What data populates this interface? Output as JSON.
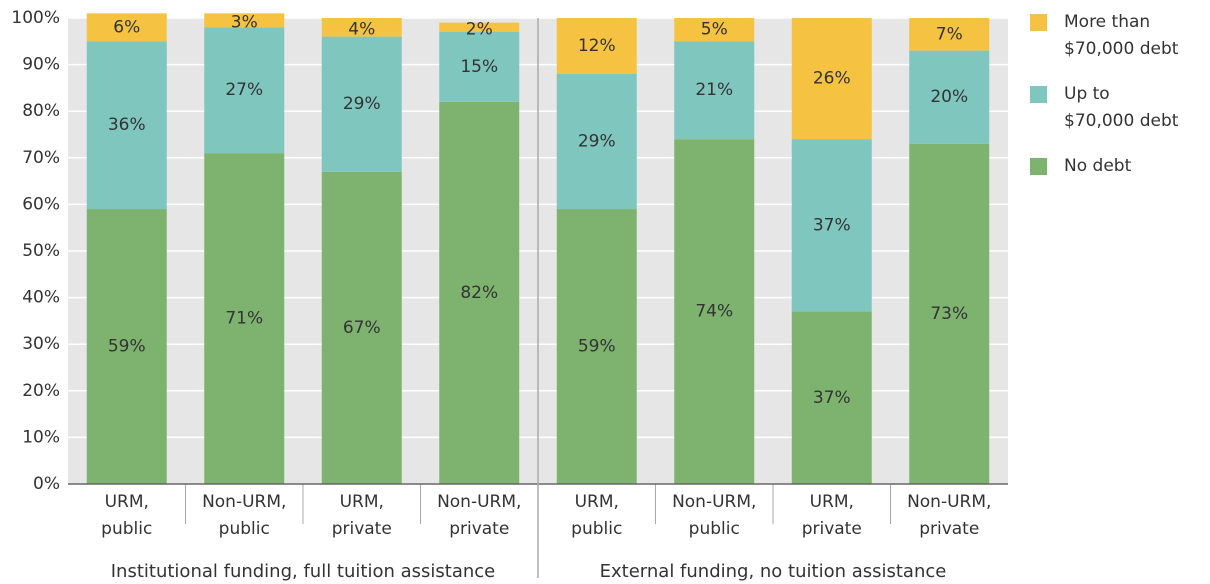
{
  "chart_data": {
    "type": "stacked_bar",
    "categories": [
      [
        "URM,",
        "public"
      ],
      [
        "Non-URM,",
        "public"
      ],
      [
        "URM,",
        "private"
      ],
      [
        "Non-URM,",
        "private"
      ],
      [
        "URM,",
        "public"
      ],
      [
        "Non-URM,",
        "public"
      ],
      [
        "URM,",
        "private"
      ],
      [
        "Non-URM,",
        "private"
      ]
    ],
    "groups": [
      "Institutional funding, full tuition assistance",
      "External funding, no tuition assistance"
    ],
    "series": [
      {
        "name": [
          "No debt"
        ],
        "color": "#7db36e",
        "values": [
          59,
          71,
          67,
          82,
          59,
          74,
          37,
          73
        ],
        "value_labels": [
          "59%",
          "71%",
          "67%",
          "82%",
          "59%",
          "74%",
          "37%",
          "73%"
        ]
      },
      {
        "name": [
          "Up to",
          "$70,000 debt"
        ],
        "color": "#7fc6bf",
        "values": [
          36,
          27,
          29,
          15,
          29,
          21,
          37,
          20
        ],
        "value_labels": [
          "36%",
          "27%",
          "29%",
          "15%",
          "29%",
          "21%",
          "37%",
          "20%"
        ]
      },
      {
        "name": [
          "More than",
          "$70,000 debt"
        ],
        "color": "#f5c242",
        "values": [
          6,
          3,
          4,
          2,
          12,
          5,
          26,
          7
        ],
        "value_labels": [
          "6%",
          "3%",
          "4%",
          "2%",
          "12%",
          "5%",
          "26%",
          "7%"
        ]
      }
    ],
    "ylim": [
      0,
      100
    ],
    "yticks": [
      {
        "value": 0,
        "label": "0%"
      },
      {
        "value": 10,
        "label": "10%"
      },
      {
        "value": 20,
        "label": "20%"
      },
      {
        "value": 30,
        "label": "30%"
      },
      {
        "value": 40,
        "label": "40%"
      },
      {
        "value": 50,
        "label": "50%"
      },
      {
        "value": 60,
        "label": "60%"
      },
      {
        "value": 70,
        "label": "70%"
      },
      {
        "value": 80,
        "label": "80%"
      },
      {
        "value": 90,
        "label": "90%"
      },
      {
        "value": 100,
        "label": "100%"
      }
    ],
    "grid": true
  }
}
